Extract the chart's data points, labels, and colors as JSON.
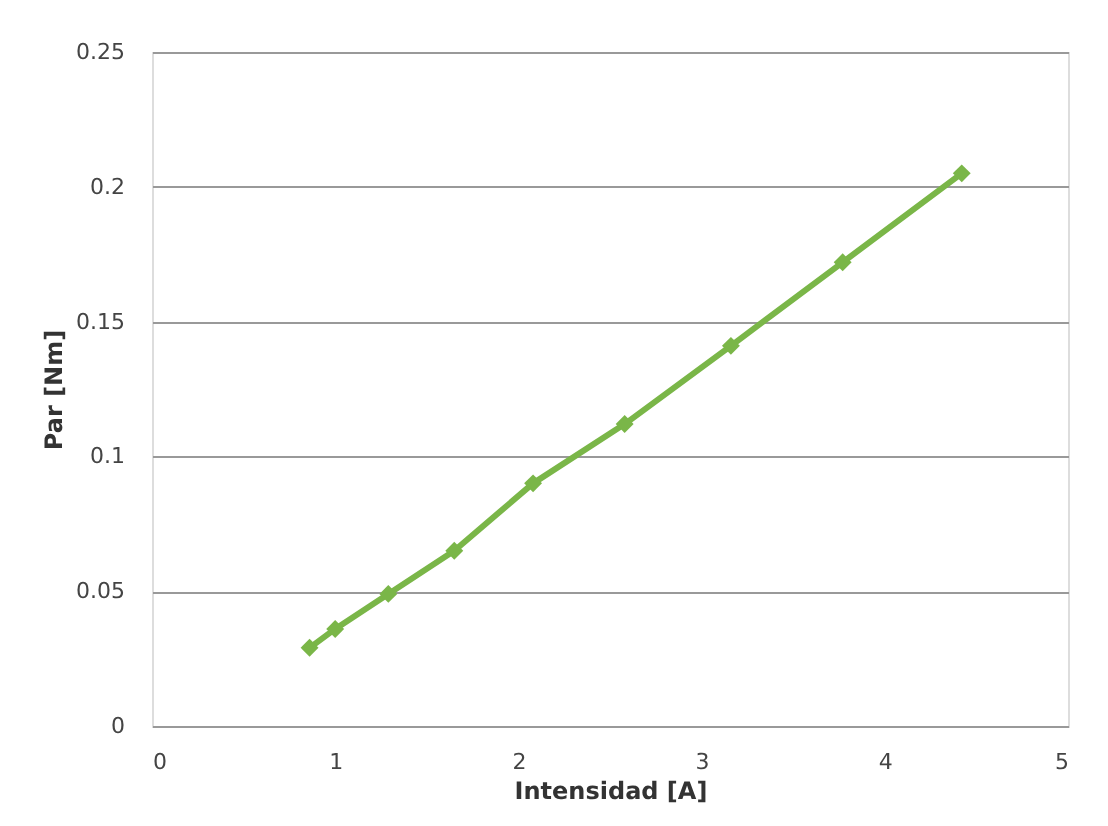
{
  "chart_data": {
    "type": "line",
    "xlabel": "Intensidad [A]",
    "ylabel": "Par [Nm]",
    "x": [
      0.86,
      1.0,
      1.29,
      1.65,
      2.08,
      2.58,
      3.16,
      3.77,
      4.42
    ],
    "series": [
      {
        "color": "#7ab648",
        "values": [
          0.029,
          0.036,
          0.049,
          0.065,
          0.09,
          0.112,
          0.141,
          0.172,
          0.205
        ]
      }
    ],
    "xlim": [
      0,
      5
    ],
    "xticks": [
      0,
      1,
      2,
      3,
      4,
      5
    ],
    "ylim": [
      0,
      0.25
    ],
    "yticks": [
      0,
      0.05,
      0.1,
      0.15,
      0.2,
      0.25
    ],
    "grid": "y",
    "marker": "diamond",
    "line_style": "solid"
  }
}
